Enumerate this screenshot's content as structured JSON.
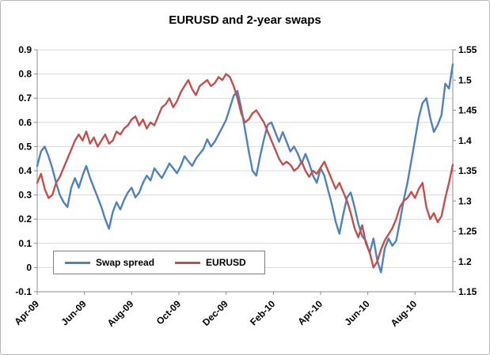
{
  "chart_data": {
    "type": "line",
    "title": "EURUSD and 2-year swaps",
    "grid": true,
    "grid_color": "#d9d9d9",
    "axis_color": "#8c8c8c",
    "legend_position": "inside-bottom-left",
    "x_unit": "months from Apr-2009",
    "x_range": [
      0,
      17.6
    ],
    "x_tick_positions": [
      0,
      2,
      4,
      6,
      8,
      10,
      12,
      14,
      16
    ],
    "x_tick_labels": [
      "Apr-09",
      "Jun-09",
      "Aug-09",
      "Oct-09",
      "Dec-09",
      "Feb-10",
      "Apr-10",
      "Jun-10",
      "Aug-10"
    ],
    "left_axis": {
      "title": "Swap spread",
      "min": -0.1,
      "max": 0.9,
      "step": 0.1,
      "tick_labels": [
        "0.9",
        "0.8",
        "0.7",
        "0.6",
        "0.5",
        "0.4",
        "0.3",
        "0.2",
        "0.1",
        "0",
        "-0.1"
      ]
    },
    "right_axis": {
      "title": "EURUSD",
      "min": 1.15,
      "max": 1.55,
      "step": 0.05,
      "tick_labels": [
        "1.55",
        "1.5",
        "1.45",
        "1.4",
        "1.35",
        "1.3",
        "1.25",
        "1.2",
        "1.15"
      ]
    },
    "series": [
      {
        "name": "Swap spread",
        "axis": "left",
        "color": "#4F81BD",
        "values": [
          0.42,
          0.48,
          0.5,
          0.46,
          0.41,
          0.35,
          0.3,
          0.27,
          0.25,
          0.33,
          0.37,
          0.33,
          0.38,
          0.42,
          0.37,
          0.33,
          0.29,
          0.25,
          0.2,
          0.16,
          0.23,
          0.27,
          0.24,
          0.28,
          0.31,
          0.33,
          0.29,
          0.31,
          0.35,
          0.38,
          0.36,
          0.41,
          0.39,
          0.37,
          0.4,
          0.43,
          0.41,
          0.39,
          0.42,
          0.46,
          0.44,
          0.42,
          0.45,
          0.47,
          0.49,
          0.53,
          0.5,
          0.52,
          0.55,
          0.58,
          0.61,
          0.66,
          0.71,
          0.73,
          0.66,
          0.57,
          0.48,
          0.4,
          0.38,
          0.46,
          0.53,
          0.59,
          0.6,
          0.56,
          0.52,
          0.56,
          0.52,
          0.48,
          0.5,
          0.47,
          0.43,
          0.47,
          0.43,
          0.38,
          0.35,
          0.41,
          0.38,
          0.32,
          0.26,
          0.19,
          0.14,
          0.22,
          0.29,
          0.31,
          0.25,
          0.18,
          0.13,
          0.11,
          0.06,
          0.12,
          0.03,
          -0.02,
          0.08,
          0.12,
          0.09,
          0.11,
          0.19,
          0.28,
          0.35,
          0.44,
          0.53,
          0.62,
          0.68,
          0.7,
          0.62,
          0.56,
          0.59,
          0.63,
          0.76,
          0.74,
          0.84
        ]
      },
      {
        "name": "EURUSD",
        "axis": "right",
        "color": "#C0504D",
        "values": [
          1.33,
          1.345,
          1.32,
          1.305,
          1.31,
          1.33,
          1.34,
          1.355,
          1.37,
          1.385,
          1.4,
          1.41,
          1.4,
          1.415,
          1.395,
          1.405,
          1.39,
          1.4,
          1.41,
          1.395,
          1.4,
          1.415,
          1.41,
          1.42,
          1.425,
          1.435,
          1.44,
          1.425,
          1.435,
          1.42,
          1.43,
          1.425,
          1.44,
          1.455,
          1.46,
          1.47,
          1.455,
          1.465,
          1.48,
          1.49,
          1.5,
          1.485,
          1.475,
          1.49,
          1.495,
          1.5,
          1.49,
          1.495,
          1.505,
          1.5,
          1.51,
          1.505,
          1.49,
          1.47,
          1.445,
          1.43,
          1.435,
          1.445,
          1.45,
          1.44,
          1.43,
          1.415,
          1.4,
          1.385,
          1.37,
          1.36,
          1.365,
          1.36,
          1.35,
          1.355,
          1.365,
          1.35,
          1.34,
          1.35,
          1.345,
          1.355,
          1.365,
          1.35,
          1.335,
          1.32,
          1.33,
          1.315,
          1.3,
          1.28,
          1.255,
          1.24,
          1.26,
          1.23,
          1.215,
          1.19,
          1.2,
          1.22,
          1.235,
          1.245,
          1.255,
          1.27,
          1.29,
          1.3,
          1.305,
          1.315,
          1.305,
          1.32,
          1.33,
          1.29,
          1.27,
          1.28,
          1.265,
          1.275,
          1.305,
          1.33,
          1.36
        ]
      }
    ]
  }
}
